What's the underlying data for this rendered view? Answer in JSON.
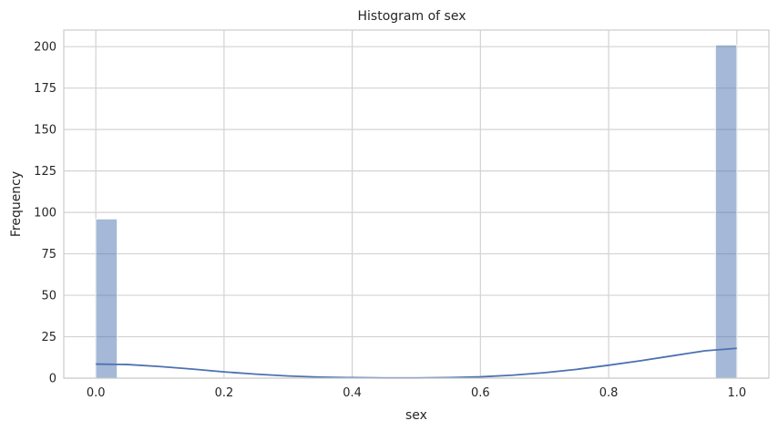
{
  "chart_data": {
    "type": "bar",
    "title": "Histogram of sex",
    "xlabel": "sex",
    "ylabel": "Frequency",
    "xlim": [
      -0.05,
      1.05
    ],
    "ylim": [
      0,
      210
    ],
    "xticks": [
      0.0,
      0.2,
      0.4,
      0.6,
      0.8,
      1.0
    ],
    "xtick_labels": [
      "0.0",
      "0.2",
      "0.4",
      "0.6",
      "0.8",
      "1.0"
    ],
    "yticks": [
      0,
      25,
      50,
      75,
      100,
      125,
      150,
      175,
      200
    ],
    "ytick_labels": [
      "0",
      "25",
      "50",
      "75",
      "100",
      "125",
      "150",
      "175",
      "200"
    ],
    "grid": true,
    "bins": [
      {
        "x0": 0.0,
        "x1": 0.0333,
        "count": 96
      },
      {
        "x0": 0.9667,
        "x1": 1.0,
        "count": 201
      }
    ],
    "kde_points": [
      [
        0.0,
        8.5
      ],
      [
        0.05,
        8.2
      ],
      [
        0.1,
        7.0
      ],
      [
        0.15,
        5.5
      ],
      [
        0.2,
        3.8
      ],
      [
        0.25,
        2.4
      ],
      [
        0.3,
        1.3
      ],
      [
        0.35,
        0.6
      ],
      [
        0.4,
        0.3
      ],
      [
        0.45,
        0.15
      ],
      [
        0.5,
        0.15
      ],
      [
        0.55,
        0.35
      ],
      [
        0.6,
        0.8
      ],
      [
        0.65,
        1.8
      ],
      [
        0.7,
        3.3
      ],
      [
        0.75,
        5.3
      ],
      [
        0.8,
        7.8
      ],
      [
        0.85,
        10.5
      ],
      [
        0.9,
        13.5
      ],
      [
        0.95,
        16.5
      ],
      [
        1.0,
        18.0
      ]
    ],
    "colors": {
      "bar": "#4c72b0",
      "kde": "#4c72b0",
      "grid": "#d3d3d3",
      "frame": "#cccccc"
    }
  }
}
